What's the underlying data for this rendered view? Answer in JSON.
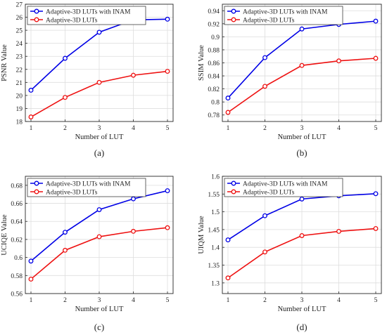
{
  "chart_data": [
    {
      "type": "line",
      "caption": "(a)",
      "xlabel": "Number of LUT",
      "ylabel": "PSNR Value",
      "x": [
        1,
        2,
        3,
        4,
        5
      ],
      "xticks": [
        "1",
        "2",
        "3",
        "4",
        "5"
      ],
      "ylim": [
        18,
        27
      ],
      "yticks": [
        18,
        19,
        20,
        21,
        22,
        23,
        24,
        25,
        26,
        27
      ],
      "grid": true,
      "legend": "top-left",
      "series": [
        {
          "name": "Adaptive-3D LUTs with INAM",
          "color": "#0000e6",
          "values": [
            20.4,
            22.85,
            24.85,
            25.8,
            25.85
          ]
        },
        {
          "name": "Adaptive-3D LUTs",
          "color": "#ee1111",
          "values": [
            18.35,
            19.85,
            21.0,
            21.55,
            21.85
          ]
        }
      ]
    },
    {
      "type": "line",
      "caption": "(b)",
      "xlabel": "Number of LUT",
      "ylabel": "SSIM Value",
      "x": [
        1,
        2,
        3,
        4,
        5
      ],
      "xticks": [
        "1",
        "2",
        "3",
        "4",
        "5"
      ],
      "ylim": [
        0.77,
        0.95
      ],
      "yticks": [
        0.78,
        0.8,
        0.82,
        0.84,
        0.86,
        0.88,
        0.9,
        0.92,
        0.94
      ],
      "grid": true,
      "legend": "top-left",
      "series": [
        {
          "name": "Adaptive-3D LUTs with INAM",
          "color": "#0000e6",
          "values": [
            0.806,
            0.868,
            0.912,
            0.919,
            0.924
          ]
        },
        {
          "name": "Adaptive-3D LUTs",
          "color": "#ee1111",
          "values": [
            0.784,
            0.824,
            0.856,
            0.863,
            0.867
          ]
        }
      ]
    },
    {
      "type": "line",
      "caption": "(c)",
      "xlabel": "Number of LUT",
      "ylabel": "UCIQE Value",
      "x": [
        1,
        2,
        3,
        4,
        5
      ],
      "xticks": [
        "1",
        "2",
        "3",
        "4",
        "5"
      ],
      "ylim": [
        0.56,
        0.69
      ],
      "yticks": [
        0.56,
        0.58,
        0.6,
        0.62,
        0.64,
        0.66,
        0.68
      ],
      "grid": true,
      "legend": "top-left",
      "series": [
        {
          "name": "Adaptive-3D LUTs with INAM",
          "color": "#0000e6",
          "values": [
            0.596,
            0.628,
            0.653,
            0.665,
            0.674
          ]
        },
        {
          "name": "Adaptive-3D LUTs",
          "color": "#ee1111",
          "values": [
            0.576,
            0.608,
            0.623,
            0.629,
            0.633
          ]
        }
      ]
    },
    {
      "type": "line",
      "caption": "(d)",
      "xlabel": "Number of LUT",
      "ylabel": "UIQM Value",
      "x": [
        1,
        2,
        3,
        4,
        5
      ],
      "xticks": [
        "1",
        "2",
        "3",
        "4",
        "5"
      ],
      "ylim": [
        1.27,
        1.6
      ],
      "yticks": [
        1.3,
        1.35,
        1.4,
        1.45,
        1.5,
        1.55,
        1.6
      ],
      "grid": true,
      "legend": "top-left",
      "series": [
        {
          "name": "Adaptive-3D LUTs with INAM",
          "color": "#0000e6",
          "values": [
            1.421,
            1.489,
            1.536,
            1.545,
            1.551
          ]
        },
        {
          "name": "Adaptive-3D LUTs",
          "color": "#ee1111",
          "values": [
            1.314,
            1.387,
            1.433,
            1.445,
            1.453
          ]
        }
      ]
    }
  ]
}
